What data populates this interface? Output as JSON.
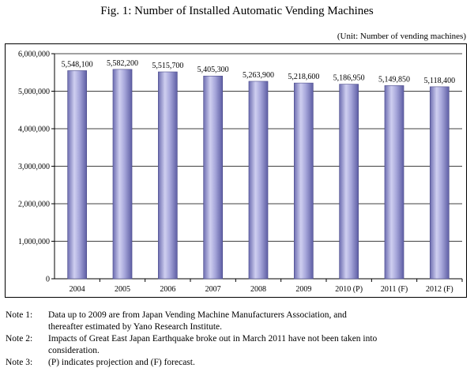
{
  "title": "Fig. 1: Number of Installed Automatic Vending Machines",
  "unit": "(Unit: Number of vending machines)",
  "chart_data": {
    "type": "bar",
    "categories": [
      "2004",
      "2005",
      "2006",
      "2007",
      "2008",
      "2009",
      "2010 (P)",
      "2011 (F)",
      "2012 (F)"
    ],
    "values": [
      5548100,
      5582200,
      5515700,
      5405300,
      5263900,
      5218600,
      5186950,
      5149850,
      5118400
    ],
    "value_labels": [
      "5,548,100",
      "5,582,200",
      "5,515,700",
      "5,405,300",
      "5,263,900",
      "5,218,600",
      "5,186,950",
      "5,149,850",
      "5,118,400"
    ],
    "ylim": [
      0,
      6000000
    ],
    "yticks": [
      0,
      1000000,
      2000000,
      3000000,
      4000000,
      5000000,
      6000000
    ],
    "ytick_labels": [
      "0",
      "1,000,000",
      "2,000,000",
      "3,000,000",
      "4,000,000",
      "5,000,000",
      "6,000,000"
    ],
    "grid": true,
    "bar_color": "#9b9bd0"
  },
  "notes": [
    {
      "head": "Note 1:",
      "lines": [
        "Data up to 2009 are from Japan Vending Machine Manufacturers Association, and",
        "thereafter estimated by Yano Research Institute."
      ]
    },
    {
      "head": "Note 2:",
      "lines": [
        "Impacts of Great East Japan Earthquake broke out in March 2011 have not been taken into",
        "consideration."
      ]
    },
    {
      "head": "Note 3:",
      "lines": [
        "(P) indicates projection and (F) forecast."
      ]
    }
  ]
}
